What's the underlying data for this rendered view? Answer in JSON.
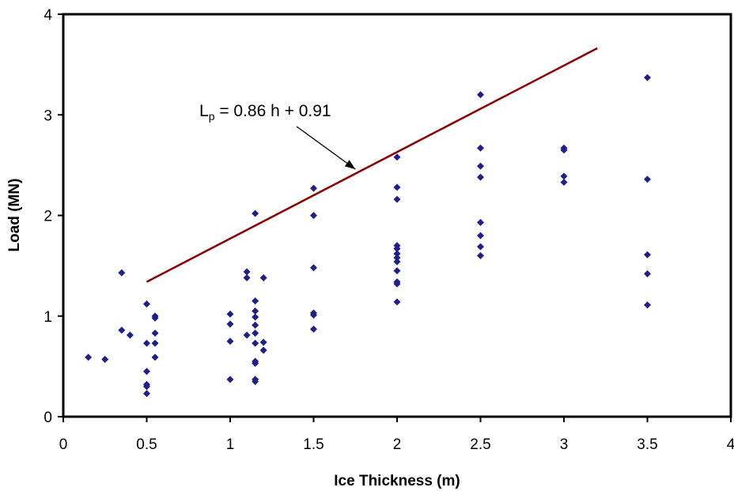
{
  "chart_data": {
    "type": "scatter",
    "xlabel": "Ice Thickness (m)",
    "ylabel": "Load (MN)",
    "xlim": [
      0,
      4
    ],
    "ylim": [
      0,
      4
    ],
    "x_ticks": [
      "0",
      "0.5",
      "1",
      "1.5",
      "2",
      "2.5",
      "3",
      "3.5",
      "4"
    ],
    "y_ticks": [
      "0",
      "1",
      "2",
      "3",
      "4"
    ],
    "grid": false,
    "legend": "none",
    "marker_color": "#1f1f8a",
    "line_color": "#8b0000",
    "series": [
      {
        "points": [
          [
            0.15,
            0.59
          ],
          [
            0.25,
            0.57
          ],
          [
            0.35,
            1.43
          ],
          [
            0.35,
            0.86
          ],
          [
            0.4,
            0.81
          ],
          [
            0.5,
            1.12
          ],
          [
            0.5,
            0.73
          ],
          [
            0.5,
            0.45
          ],
          [
            0.5,
            0.32
          ],
          [
            0.5,
            0.3
          ],
          [
            0.5,
            0.23
          ],
          [
            0.55,
            1.0
          ],
          [
            0.55,
            0.98
          ],
          [
            0.55,
            0.83
          ],
          [
            0.55,
            0.73
          ],
          [
            0.55,
            0.59
          ],
          [
            1.0,
            1.02
          ],
          [
            1.0,
            0.92
          ],
          [
            1.0,
            0.75
          ],
          [
            1.0,
            0.37
          ],
          [
            1.1,
            1.44
          ],
          [
            1.1,
            1.38
          ],
          [
            1.1,
            0.81
          ],
          [
            1.15,
            2.02
          ],
          [
            1.15,
            1.15
          ],
          [
            1.15,
            1.05
          ],
          [
            1.15,
            0.99
          ],
          [
            1.15,
            0.91
          ],
          [
            1.15,
            0.83
          ],
          [
            1.15,
            0.73
          ],
          [
            1.15,
            0.55
          ],
          [
            1.15,
            0.53
          ],
          [
            1.15,
            0.37
          ],
          [
            1.15,
            0.35
          ],
          [
            1.2,
            1.38
          ],
          [
            1.2,
            0.74
          ],
          [
            1.2,
            0.66
          ],
          [
            1.5,
            2.27
          ],
          [
            1.5,
            2.0
          ],
          [
            1.5,
            1.48
          ],
          [
            1.5,
            1.03
          ],
          [
            1.5,
            1.01
          ],
          [
            1.5,
            0.87
          ],
          [
            2.0,
            2.58
          ],
          [
            2.0,
            2.28
          ],
          [
            2.0,
            2.16
          ],
          [
            2.0,
            1.7
          ],
          [
            2.0,
            1.67
          ],
          [
            2.0,
            1.62
          ],
          [
            2.0,
            1.58
          ],
          [
            2.0,
            1.54
          ],
          [
            2.0,
            1.45
          ],
          [
            2.0,
            1.34
          ],
          [
            2.0,
            1.32
          ],
          [
            2.0,
            1.14
          ],
          [
            2.5,
            3.2
          ],
          [
            2.5,
            2.67
          ],
          [
            2.5,
            2.49
          ],
          [
            2.5,
            2.38
          ],
          [
            2.5,
            1.93
          ],
          [
            2.5,
            1.8
          ],
          [
            2.5,
            1.69
          ],
          [
            2.5,
            1.6
          ],
          [
            3.0,
            2.67
          ],
          [
            3.0,
            2.65
          ],
          [
            3.0,
            2.39
          ],
          [
            3.0,
            2.33
          ],
          [
            3.5,
            3.37
          ],
          [
            3.5,
            2.36
          ],
          [
            3.5,
            1.61
          ],
          [
            3.5,
            1.42
          ],
          [
            3.5,
            1.11
          ]
        ]
      }
    ],
    "trendline": {
      "slope": 0.86,
      "intercept": 0.91,
      "x_range": [
        0.5,
        3.2
      ]
    },
    "annotation": {
      "L": "L",
      "sub": "p",
      "rest": " = 0.86 h + 0.91",
      "arrow_target": [
        1.75,
        2.46
      ]
    }
  }
}
